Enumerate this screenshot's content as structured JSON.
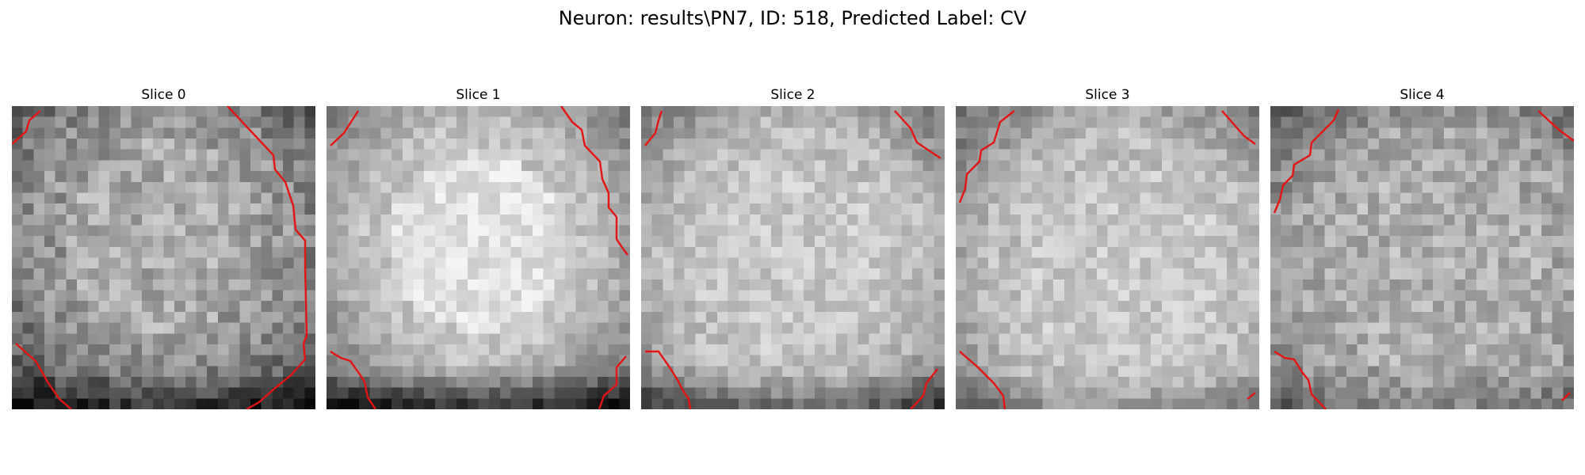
{
  "figure": {
    "title": "Neuron: results\\PN7, ID: 518, Predicted Label: CV"
  },
  "slices": [
    {
      "title": "Slice 0"
    },
    {
      "title": "Slice 1"
    },
    {
      "title": "Slice 2"
    },
    {
      "title": "Slice 3"
    },
    {
      "title": "Slice 4"
    }
  ],
  "colors": {
    "contour": "#e41414"
  },
  "colormap": "grayscale",
  "axes": "off"
}
